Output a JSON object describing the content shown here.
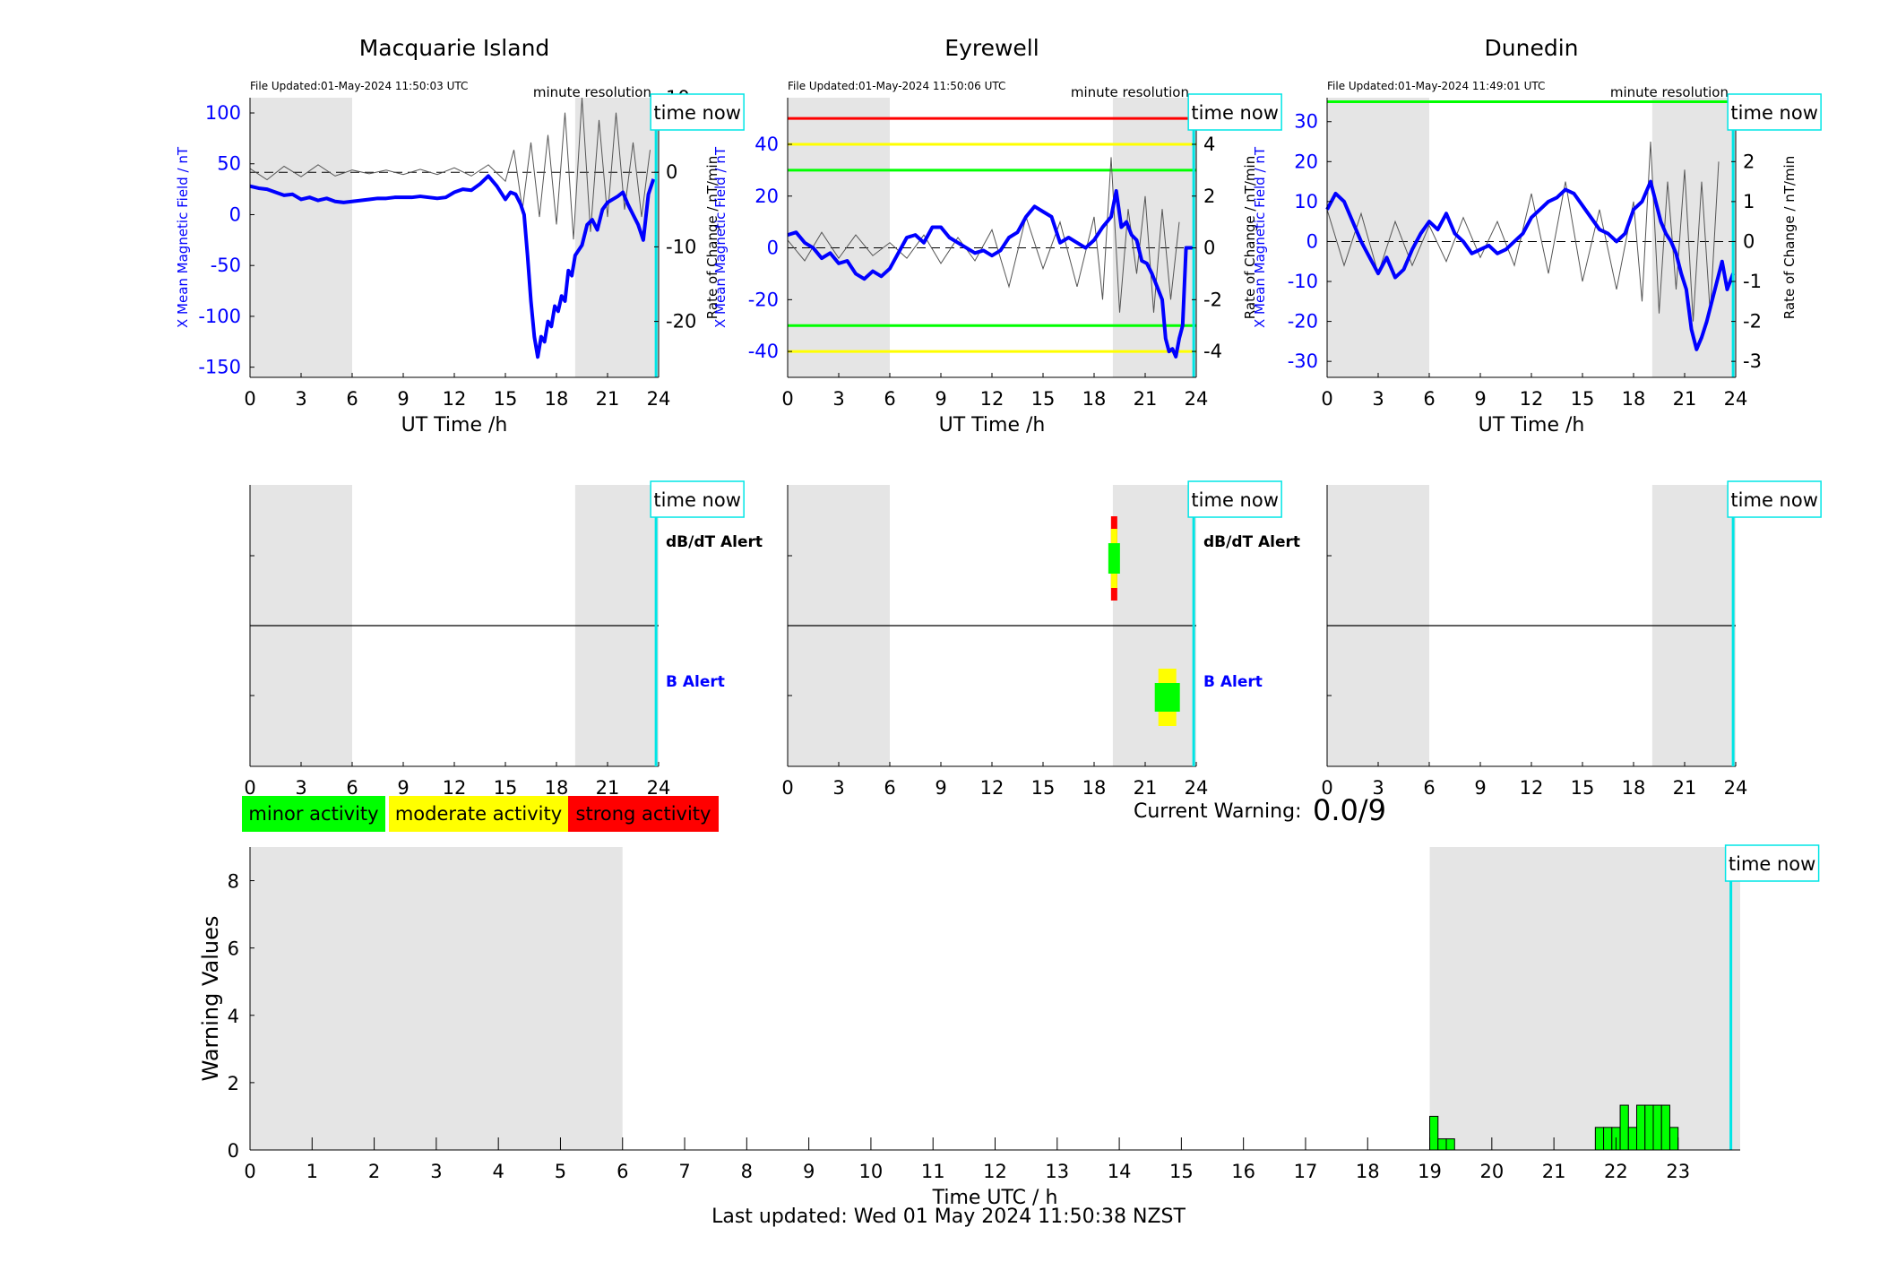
{
  "colors": {
    "xfield": "#0000ff",
    "rate": "#555555",
    "night": "#e5e5e5",
    "now": "#00e5e5",
    "red": "#ff0000",
    "yellow": "#ffff00",
    "green": "#00ff00"
  },
  "common": {
    "time_now_label": "time now",
    "xlabel_top": "UT Time /h",
    "resolution": "minute resolution",
    "ylabel_left": "X Mean Magnetic Field / nT",
    "ylabel_right": "Rate of Change / nT/min",
    "dbdt_alert": "dB/dT Alert",
    "b_alert": "B Alert"
  },
  "stations": [
    {
      "id": "macquarie",
      "title": "Macquarie Island",
      "file_updated": "File Updated:01-May-2024 11:50:03 UTC"
    },
    {
      "id": "eyrewell",
      "title": "Eyrewell",
      "file_updated": "File Updated:01-May-2024 11:50:06 UTC"
    },
    {
      "id": "dunedin",
      "title": "Dunedin",
      "file_updated": "File Updated:01-May-2024 11:49:01 UTC"
    }
  ],
  "legend": {
    "minor": "minor activity",
    "moderate": "moderate activity",
    "strong": "strong activity"
  },
  "current_warning": {
    "label": "Current Warning:",
    "value": "0.0/9"
  },
  "footer": "Last updated: Wed 01 May 2024 11:50:38 NZST",
  "chart_data": [
    {
      "type": "line",
      "title": "Macquarie Island",
      "xlabel": "UT Time /h",
      "ylabel": "X Mean Magnetic Field / nT",
      "y2label": "Rate of Change / nT/min",
      "xlim": [
        0,
        24
      ],
      "ylim": [
        -160,
        115
      ],
      "y2lim": [
        -27.5,
        10
      ],
      "xticks": [
        0,
        3,
        6,
        9,
        12,
        15,
        18,
        21,
        24
      ],
      "yticks": [
        -150,
        -100,
        -50,
        0,
        50,
        100
      ],
      "y2ticks": [
        -20,
        -10,
        0,
        10
      ],
      "night_shading": [
        [
          0,
          6
        ],
        [
          19.1,
          24
        ]
      ],
      "time_now": 23.85,
      "thresholds": [],
      "series": [
        {
          "x": [
            0,
            0.5,
            1,
            1.5,
            2,
            2.5,
            3,
            3.5,
            4,
            4.5,
            5,
            5.5,
            6,
            6.5,
            7,
            7.5,
            8,
            8.5,
            9,
            9.5,
            10,
            10.5,
            11,
            11.5,
            12,
            12.5,
            13,
            13.5,
            14,
            14.5,
            15,
            15.3,
            15.6,
            15.9,
            16.1,
            16.3,
            16.5,
            16.7,
            16.9,
            17.1,
            17.3,
            17.5,
            17.7,
            17.9,
            18.1,
            18.3,
            18.5,
            18.7,
            18.9,
            19.1,
            19.3,
            19.5,
            19.8,
            20.1,
            20.4,
            20.7,
            21,
            21.3,
            21.6,
            21.9,
            22.2,
            22.5,
            22.8,
            23.1,
            23.4,
            23.7
          ],
          "y": [
            28,
            26,
            25,
            22,
            19,
            20,
            15,
            17,
            14,
            16,
            13,
            12,
            13,
            14,
            15,
            16,
            16,
            17,
            17,
            17,
            18,
            17,
            16,
            17,
            22,
            25,
            24,
            30,
            38,
            28,
            15,
            22,
            20,
            10,
            0,
            -40,
            -85,
            -120,
            -140,
            -120,
            -125,
            -105,
            -110,
            -90,
            -95,
            -80,
            -85,
            -55,
            -60,
            -40,
            -35,
            -30,
            -10,
            -5,
            -15,
            5,
            12,
            15,
            18,
            22,
            10,
            0,
            -10,
            -25,
            20,
            35
          ]
        },
        {
          "x": [
            0,
            1,
            2,
            3,
            4,
            5,
            6,
            7,
            8,
            9,
            10,
            11,
            12,
            13,
            14,
            15,
            15.5,
            16,
            16.5,
            17,
            17.5,
            18,
            18.5,
            19,
            19.5,
            20,
            20.5,
            21,
            21.5,
            22,
            22.5,
            23,
            23.5
          ],
          "y": [
            0.5,
            -1,
            0.8,
            -0.6,
            1,
            -0.5,
            0.3,
            -0.2,
            0.3,
            -0.3,
            0.4,
            -0.3,
            0.6,
            -0.5,
            1,
            -1.2,
            3,
            -5,
            4,
            -6,
            5,
            -7,
            8,
            -9,
            10,
            -8,
            7,
            -6,
            8,
            -5,
            4,
            -6,
            3
          ]
        }
      ]
    },
    {
      "type": "line",
      "title": "Eyrewell",
      "xlabel": "UT Time /h",
      "ylabel": "X Mean Magnetic Field / nT",
      "y2label": "Rate of Change / nT/min",
      "xlim": [
        0,
        24
      ],
      "ylim": [
        -50,
        58
      ],
      "y2lim": [
        -5,
        5.8
      ],
      "xticks": [
        0,
        3,
        6,
        9,
        12,
        15,
        18,
        21,
        24
      ],
      "yticks": [
        -40,
        -20,
        0,
        20,
        40
      ],
      "y2ticks": [
        -4,
        -2,
        0,
        2,
        4
      ],
      "night_shading": [
        [
          0,
          6
        ],
        [
          19.1,
          24
        ]
      ],
      "time_now": 23.85,
      "thresholds": [
        {
          "value": 50,
          "color": "red"
        },
        {
          "value": 40,
          "color": "yellow"
        },
        {
          "value": 30,
          "color": "green"
        },
        {
          "value": -30,
          "color": "green"
        },
        {
          "value": -40,
          "color": "yellow"
        }
      ],
      "series": [
        {
          "x": [
            0,
            0.5,
            1,
            1.5,
            2,
            2.5,
            3,
            3.5,
            4,
            4.5,
            5,
            5.5,
            6,
            6.5,
            7,
            7.5,
            8,
            8.5,
            9,
            9.5,
            10,
            10.5,
            11,
            11.5,
            12,
            12.5,
            13,
            13.5,
            14,
            14.5,
            15,
            15.5,
            16,
            16.5,
            17,
            17.5,
            18,
            18.5,
            19,
            19.3,
            19.6,
            19.9,
            20.2,
            20.5,
            20.8,
            21.1,
            21.4,
            21.7,
            22,
            22.2,
            22.4,
            22.6,
            22.8,
            23,
            23.2,
            23.4,
            23.6,
            23.85
          ],
          "y": [
            5,
            6,
            2,
            0,
            -4,
            -2,
            -6,
            -5,
            -10,
            -12,
            -9,
            -11,
            -8,
            -2,
            4,
            5,
            2,
            8,
            8,
            4,
            2,
            0,
            -2,
            -1,
            -3,
            -1,
            4,
            6,
            12,
            16,
            14,
            12,
            2,
            4,
            2,
            0,
            3,
            8,
            12,
            22,
            8,
            10,
            5,
            3,
            -5,
            -6,
            -10,
            -15,
            -20,
            -35,
            -40,
            -39,
            -42,
            -35,
            -30,
            0,
            0,
            0
          ]
        },
        {
          "x": [
            0,
            1,
            2,
            3,
            4,
            5,
            6,
            7,
            8,
            9,
            10,
            11,
            12,
            13,
            14,
            15,
            16,
            17,
            18,
            18.5,
            19,
            19.5,
            20,
            20.5,
            21,
            21.5,
            22,
            22.5,
            23
          ],
          "y": [
            0.3,
            -0.5,
            0.6,
            -0.4,
            0.5,
            -0.3,
            0.2,
            -0.4,
            0.5,
            -0.6,
            0.4,
            -0.5,
            0.7,
            -1.5,
            1.2,
            -0.8,
            1,
            -1.5,
            1.2,
            -2,
            3.5,
            -2.5,
            1.5,
            -1,
            2,
            -2.5,
            1.5,
            -2,
            1
          ]
        }
      ]
    },
    {
      "type": "line",
      "title": "Dunedin",
      "xlabel": "UT Time /h",
      "ylabel": "X Mean Magnetic Field / nT",
      "y2label": "Rate of Change / nT/min",
      "xlim": [
        0,
        24
      ],
      "ylim": [
        -34,
        36
      ],
      "y2lim": [
        -3.4,
        3.6
      ],
      "xticks": [
        0,
        3,
        6,
        9,
        12,
        15,
        18,
        21,
        24
      ],
      "yticks": [
        -30,
        -20,
        -10,
        0,
        10,
        20,
        30
      ],
      "y2ticks": [
        -3,
        -2,
        -1,
        0,
        1,
        2,
        3
      ],
      "night_shading": [
        [
          0,
          6
        ],
        [
          19.1,
          24
        ]
      ],
      "time_now": 23.85,
      "thresholds": [
        {
          "value": 35,
          "color": "green"
        }
      ],
      "series": [
        {
          "x": [
            0,
            0.5,
            1,
            1.5,
            2,
            2.5,
            3,
            3.5,
            4,
            4.5,
            5,
            5.5,
            6,
            6.5,
            7,
            7.5,
            8,
            8.5,
            9,
            9.5,
            10,
            10.5,
            11,
            11.5,
            12,
            12.5,
            13,
            13.5,
            14,
            14.5,
            15,
            15.5,
            16,
            16.5,
            17,
            17.5,
            18,
            18.5,
            19,
            19.3,
            19.6,
            19.9,
            20.2,
            20.5,
            20.8,
            21.1,
            21.4,
            21.7,
            22,
            22.3,
            22.6,
            22.9,
            23.2,
            23.5,
            23.85
          ],
          "y": [
            8,
            12,
            10,
            5,
            0,
            -4,
            -8,
            -4,
            -9,
            -7,
            -2,
            2,
            5,
            3,
            7,
            2,
            0,
            -3,
            -2,
            -1,
            -3,
            -2,
            0,
            2,
            6,
            8,
            10,
            11,
            13,
            12,
            9,
            6,
            3,
            2,
            0,
            2,
            8,
            10,
            15,
            10,
            5,
            2,
            0,
            -3,
            -8,
            -12,
            -22,
            -27,
            -24,
            -20,
            -15,
            -10,
            -5,
            -12,
            -8
          ]
        },
        {
          "x": [
            0,
            1,
            2,
            3,
            4,
            5,
            6,
            7,
            8,
            9,
            10,
            11,
            12,
            13,
            14,
            15,
            16,
            17,
            18,
            18.5,
            19,
            19.5,
            20,
            20.5,
            21,
            21.5,
            22,
            22.5,
            23
          ],
          "y": [
            0.8,
            -0.6,
            0.7,
            -0.8,
            0.5,
            -0.6,
            0.4,
            -0.5,
            0.6,
            -0.4,
            0.5,
            -0.6,
            1.2,
            -0.8,
            1.5,
            -1,
            0.8,
            -1.2,
            1,
            -1.5,
            2.5,
            -1.8,
            1.5,
            -1.2,
            1.8,
            -2,
            1.5,
            -1.8,
            2
          ]
        }
      ]
    },
    {
      "type": "bar",
      "title": "",
      "xlabel": "Time UTC / h",
      "ylabel": "Warning Values",
      "xlim": [
        0,
        24
      ],
      "ylim": [
        0,
        9
      ],
      "xticks": [
        0,
        1,
        2,
        3,
        4,
        5,
        6,
        7,
        8,
        9,
        10,
        11,
        12,
        13,
        14,
        15,
        16,
        17,
        18,
        19,
        20,
        21,
        22,
        23
      ],
      "yticks": [
        0,
        2,
        4,
        6,
        8
      ],
      "night_shading": [
        [
          0,
          6
        ],
        [
          19,
          24
        ]
      ],
      "time_now": 23.85,
      "bar_width_h": 0.1333,
      "x": [
        19.0,
        19.133,
        19.267,
        21.667,
        21.8,
        21.933,
        22.067,
        22.2,
        22.333,
        22.467,
        22.6,
        22.733,
        22.867
      ],
      "values": [
        1.0,
        0.33,
        0.33,
        0.67,
        0.67,
        0.67,
        1.33,
        0.67,
        1.33,
        1.33,
        1.33,
        1.33,
        0.67
      ]
    }
  ]
}
